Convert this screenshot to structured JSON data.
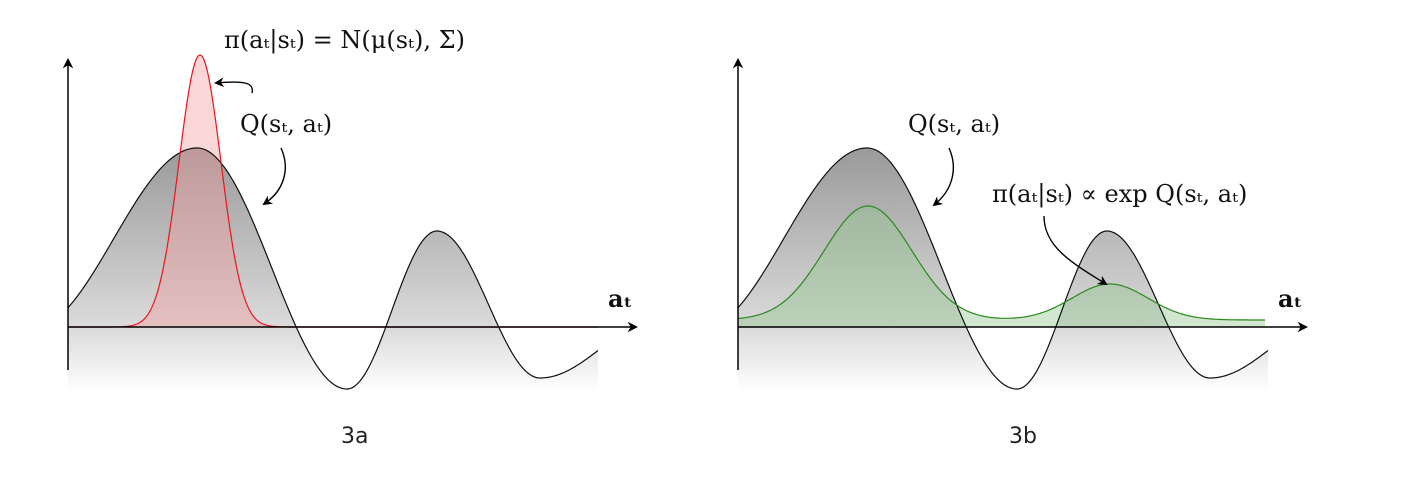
{
  "panels": [
    {
      "caption": "3a",
      "axis_label": "aₜ",
      "q_label": "Q(sₜ, aₜ)",
      "policy_label": "π(aₜ|sₜ) = N(μ(sₜ), Σ)",
      "policy_color": "#e8141e",
      "policy_fill": "#f29a9a"
    },
    {
      "caption": "3b",
      "axis_label": "aₜ",
      "q_label": "Q(sₜ, aₜ)",
      "policy_label": "π(aₜ|sₜ) ∝ exp Q(sₜ, aₜ)",
      "policy_color": "#2a8a1e",
      "policy_fill": "#8fc48a"
    }
  ]
}
